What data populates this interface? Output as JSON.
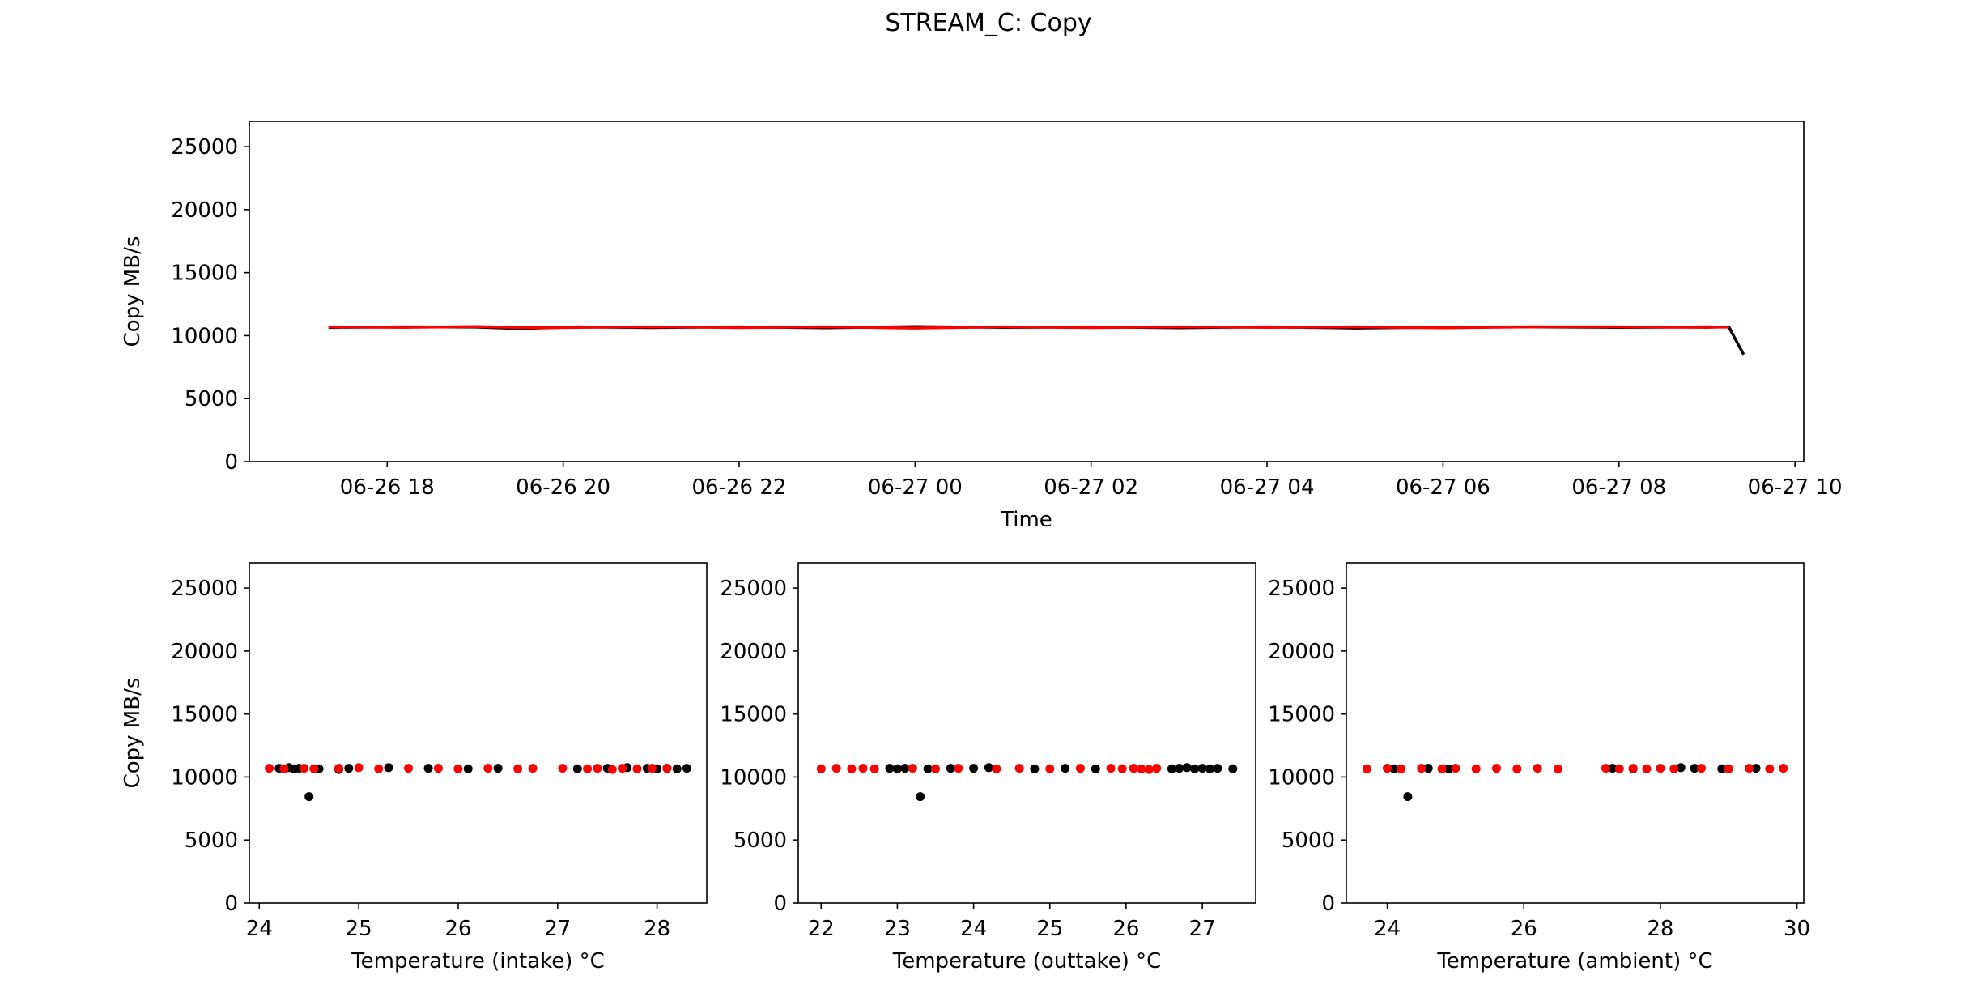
{
  "figure": {
    "title": "STREAM_C: Copy"
  },
  "colors": {
    "series_a": "#000000",
    "series_b": "#ff0000",
    "axes": "#000000",
    "background": "#ffffff"
  },
  "chart_data": [
    {
      "type": "line",
      "title": "",
      "xlabel": "Time",
      "ylabel": "Copy MB/s",
      "xlim": [
        "2020-06-26 16:26",
        "2020-06-27 10:06"
      ],
      "ylim": [
        0,
        27000
      ],
      "yticks": [
        0,
        5000,
        10000,
        15000,
        20000,
        25000
      ],
      "xticks": [
        {
          "t": "2020-06-26 18:00",
          "label": "06-26 18"
        },
        {
          "t": "2020-06-26 20:00",
          "label": "06-26 20"
        },
        {
          "t": "2020-06-26 22:00",
          "label": "06-26 22"
        },
        {
          "t": "2020-06-27 00:00",
          "label": "06-27 00"
        },
        {
          "t": "2020-06-27 02:00",
          "label": "06-27 02"
        },
        {
          "t": "2020-06-27 04:00",
          "label": "06-27 04"
        },
        {
          "t": "2020-06-27 06:00",
          "label": "06-27 06"
        },
        {
          "t": "2020-06-27 08:00",
          "label": "06-27 08"
        },
        {
          "t": "2020-06-27 10:00",
          "label": "06-27 10"
        }
      ],
      "grid": false,
      "series": [
        {
          "color": "#000000",
          "points": [
            [
              "2020-06-26 17:20",
              10650
            ],
            [
              "2020-06-26 18:10",
              10700
            ],
            [
              "2020-06-26 19:00",
              10680
            ],
            [
              "2020-06-26 19:30",
              10560
            ],
            [
              "2020-06-26 20:10",
              10700
            ],
            [
              "2020-06-26 21:00",
              10640
            ],
            [
              "2020-06-26 22:00",
              10700
            ],
            [
              "2020-06-26 23:00",
              10620
            ],
            [
              "2020-06-27 00:00",
              10720
            ],
            [
              "2020-06-27 01:00",
              10650
            ],
            [
              "2020-06-27 02:00",
              10700
            ],
            [
              "2020-06-27 03:00",
              10620
            ],
            [
              "2020-06-27 04:00",
              10700
            ],
            [
              "2020-06-27 05:00",
              10600
            ],
            [
              "2020-06-27 06:00",
              10680
            ],
            [
              "2020-06-27 07:00",
              10700
            ],
            [
              "2020-06-27 08:00",
              10650
            ],
            [
              "2020-06-27 09:00",
              10700
            ],
            [
              "2020-06-27 09:15",
              10680
            ],
            [
              "2020-06-27 09:25",
              8500
            ]
          ]
        },
        {
          "color": "#ff0000",
          "points": [
            [
              "2020-06-26 17:20",
              10700
            ],
            [
              "2020-06-26 18:10",
              10650
            ],
            [
              "2020-06-26 19:00",
              10720
            ],
            [
              "2020-06-26 19:40",
              10620
            ],
            [
              "2020-06-26 20:10",
              10650
            ],
            [
              "2020-06-26 21:00",
              10700
            ],
            [
              "2020-06-26 22:00",
              10640
            ],
            [
              "2020-06-26 23:00",
              10700
            ],
            [
              "2020-06-27 00:00",
              10600
            ],
            [
              "2020-06-27 01:00",
              10700
            ],
            [
              "2020-06-27 02:00",
              10640
            ],
            [
              "2020-06-27 03:00",
              10700
            ],
            [
              "2020-06-27 04:00",
              10650
            ],
            [
              "2020-06-27 05:00",
              10700
            ],
            [
              "2020-06-27 06:00",
              10620
            ],
            [
              "2020-06-27 07:00",
              10700
            ],
            [
              "2020-06-27 08:00",
              10700
            ],
            [
              "2020-06-27 09:00",
              10650
            ],
            [
              "2020-06-27 09:15",
              10700
            ]
          ]
        }
      ]
    },
    {
      "type": "scatter",
      "title": "",
      "xlabel": "Temperature (intake) °C",
      "ylabel": "Copy MB/s",
      "xlim": [
        23.9,
        28.5
      ],
      "ylim": [
        0,
        27000
      ],
      "xticks": [
        24,
        25,
        26,
        27,
        28
      ],
      "yticks": [
        0,
        5000,
        10000,
        15000,
        20000,
        25000
      ],
      "series": [
        {
          "color": "#000000",
          "points": [
            [
              24.2,
              10700
            ],
            [
              24.3,
              10750
            ],
            [
              24.35,
              10650
            ],
            [
              24.4,
              10700
            ],
            [
              24.5,
              8450
            ],
            [
              24.6,
              10650
            ],
            [
              24.8,
              10600
            ],
            [
              24.9,
              10700
            ],
            [
              25.3,
              10750
            ],
            [
              25.7,
              10700
            ],
            [
              26.1,
              10650
            ],
            [
              26.4,
              10700
            ],
            [
              27.2,
              10650
            ],
            [
              27.5,
              10700
            ],
            [
              27.7,
              10750
            ],
            [
              27.9,
              10700
            ],
            [
              28.0,
              10650
            ],
            [
              28.1,
              10700
            ],
            [
              28.2,
              10650
            ],
            [
              28.3,
              10700
            ]
          ]
        },
        {
          "color": "#ff0000",
          "points": [
            [
              24.1,
              10700
            ],
            [
              24.25,
              10650
            ],
            [
              24.45,
              10700
            ],
            [
              24.55,
              10650
            ],
            [
              24.8,
              10700
            ],
            [
              25.0,
              10750
            ],
            [
              25.2,
              10650
            ],
            [
              25.5,
              10700
            ],
            [
              25.8,
              10700
            ],
            [
              26.0,
              10650
            ],
            [
              26.3,
              10700
            ],
            [
              26.6,
              10650
            ],
            [
              26.75,
              10700
            ],
            [
              27.05,
              10700
            ],
            [
              27.3,
              10650
            ],
            [
              27.4,
              10700
            ],
            [
              27.55,
              10600
            ],
            [
              27.65,
              10700
            ],
            [
              27.8,
              10650
            ],
            [
              27.95,
              10700
            ],
            [
              28.1,
              10700
            ]
          ]
        }
      ]
    },
    {
      "type": "scatter",
      "title": "",
      "xlabel": "Temperature (outtake) °C",
      "ylabel": "",
      "xlim": [
        21.7,
        27.7
      ],
      "ylim": [
        0,
        27000
      ],
      "xticks": [
        22,
        23,
        24,
        25,
        26,
        27
      ],
      "yticks": [
        0,
        5000,
        10000,
        15000,
        20000,
        25000
      ],
      "series": [
        {
          "color": "#000000",
          "points": [
            [
              22.9,
              10700
            ],
            [
              23.0,
              10650
            ],
            [
              23.1,
              10700
            ],
            [
              23.3,
              8450
            ],
            [
              23.4,
              10650
            ],
            [
              23.7,
              10700
            ],
            [
              24.0,
              10700
            ],
            [
              24.2,
              10750
            ],
            [
              24.8,
              10650
            ],
            [
              25.2,
              10700
            ],
            [
              25.6,
              10650
            ],
            [
              26.1,
              10700
            ],
            [
              26.6,
              10650
            ],
            [
              26.7,
              10700
            ],
            [
              26.8,
              10750
            ],
            [
              26.9,
              10650
            ],
            [
              27.0,
              10700
            ],
            [
              27.1,
              10650
            ],
            [
              27.2,
              10700
            ],
            [
              27.4,
              10650
            ]
          ]
        },
        {
          "color": "#ff0000",
          "points": [
            [
              22.0,
              10650
            ],
            [
              22.2,
              10700
            ],
            [
              22.4,
              10650
            ],
            [
              22.55,
              10700
            ],
            [
              22.7,
              10650
            ],
            [
              23.2,
              10700
            ],
            [
              23.5,
              10650
            ],
            [
              23.8,
              10700
            ],
            [
              24.3,
              10650
            ],
            [
              24.6,
              10700
            ],
            [
              25.0,
              10650
            ],
            [
              25.4,
              10700
            ],
            [
              25.8,
              10700
            ],
            [
              25.95,
              10650
            ],
            [
              26.1,
              10700
            ],
            [
              26.2,
              10650
            ],
            [
              26.3,
              10600
            ],
            [
              26.4,
              10700
            ]
          ]
        }
      ]
    },
    {
      "type": "scatter",
      "title": "",
      "xlabel": "Temperature (ambient) °C",
      "ylabel": "",
      "xlim": [
        23.4,
        30.1
      ],
      "ylim": [
        0,
        27000
      ],
      "xticks": [
        24,
        26,
        28,
        30
      ],
      "yticks": [
        0,
        5000,
        10000,
        15000,
        20000,
        25000
      ],
      "series": [
        {
          "color": "#000000",
          "points": [
            [
              24.0,
              10700
            ],
            [
              24.1,
              10650
            ],
            [
              24.3,
              8450
            ],
            [
              24.6,
              10700
            ],
            [
              24.9,
              10650
            ],
            [
              27.3,
              10700
            ],
            [
              27.6,
              10650
            ],
            [
              28.3,
              10750
            ],
            [
              28.5,
              10700
            ],
            [
              28.9,
              10650
            ],
            [
              29.4,
              10700
            ]
          ]
        },
        {
          "color": "#ff0000",
          "points": [
            [
              23.7,
              10650
            ],
            [
              24.0,
              10700
            ],
            [
              24.2,
              10650
            ],
            [
              24.5,
              10700
            ],
            [
              24.8,
              10650
            ],
            [
              25.0,
              10700
            ],
            [
              25.3,
              10650
            ],
            [
              25.6,
              10700
            ],
            [
              25.9,
              10650
            ],
            [
              26.2,
              10700
            ],
            [
              26.5,
              10650
            ],
            [
              27.2,
              10700
            ],
            [
              27.4,
              10650
            ],
            [
              27.6,
              10700
            ],
            [
              27.8,
              10650
            ],
            [
              28.0,
              10700
            ],
            [
              28.2,
              10650
            ],
            [
              28.6,
              10700
            ],
            [
              29.0,
              10650
            ],
            [
              29.3,
              10700
            ],
            [
              29.6,
              10650
            ],
            [
              29.8,
              10700
            ]
          ]
        }
      ]
    }
  ]
}
